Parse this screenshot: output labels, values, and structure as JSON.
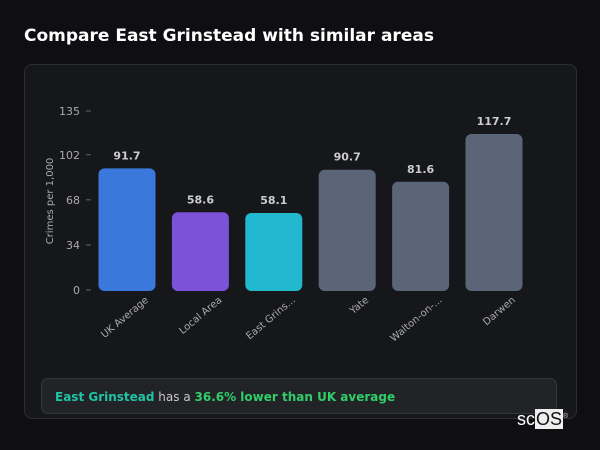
{
  "title": "Compare East Grinstead with similar areas",
  "chart_data": {
    "type": "bar",
    "ylabel": "Crimes per 1,000",
    "ylim": [
      0,
      135
    ],
    "yticks": [
      0,
      34,
      68,
      102,
      135
    ],
    "categories": [
      "UK Average",
      "Local Area",
      "East Grins...",
      "Yate",
      "Walton-on-...",
      "Darwen"
    ],
    "values": [
      91.7,
      58.6,
      58.1,
      90.7,
      81.6,
      117.7
    ],
    "colors": [
      "#3a78dc",
      "#7b52d8",
      "#22b8d0",
      "#5a6577",
      "#5a6577",
      "#5a6577"
    ],
    "grid": false
  },
  "summary": {
    "place": "East Grinstead",
    "middle": " has a ",
    "comparison": "36.6% lower than UK average"
  },
  "logo": {
    "text_a": "sc",
    "text_b": "OS",
    "mark": "®"
  }
}
